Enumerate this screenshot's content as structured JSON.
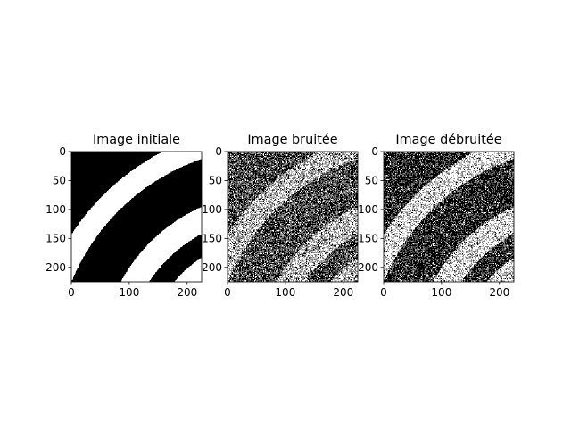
{
  "chart_data": [
    {
      "type": "heatmap",
      "title": "Image initiale",
      "xlabel": "",
      "ylabel": "",
      "colormap": "gray",
      "image_size": [
        225,
        225
      ],
      "xlim": [
        0,
        225
      ],
      "ylim": [
        225,
        0
      ],
      "xticks": [
        0,
        100,
        200
      ],
      "yticks": [
        0,
        50,
        100,
        150,
        200
      ],
      "noise_fraction": 0.0,
      "grid": false
    },
    {
      "type": "heatmap",
      "title": "Image bruitée",
      "xlabel": "",
      "ylabel": "",
      "colormap": "gray",
      "image_size": [
        225,
        225
      ],
      "xlim": [
        0,
        225
      ],
      "ylim": [
        225,
        0
      ],
      "xticks": [
        0,
        100,
        200
      ],
      "yticks": [
        0,
        50,
        100,
        150,
        200
      ],
      "noise_fraction": 0.3,
      "grid": false
    },
    {
      "type": "heatmap",
      "title": "Image débruitée",
      "xlabel": "",
      "ylabel": "",
      "colormap": "gray",
      "image_size": [
        225,
        225
      ],
      "xlim": [
        0,
        225
      ],
      "ylim": [
        225,
        0
      ],
      "xticks": [
        0,
        100,
        200
      ],
      "yticks": [
        0,
        50,
        100,
        150,
        200
      ],
      "noise_fraction": 0.2,
      "grid": false
    }
  ],
  "colors": {
    "black": "#000000",
    "white": "#ffffff"
  }
}
